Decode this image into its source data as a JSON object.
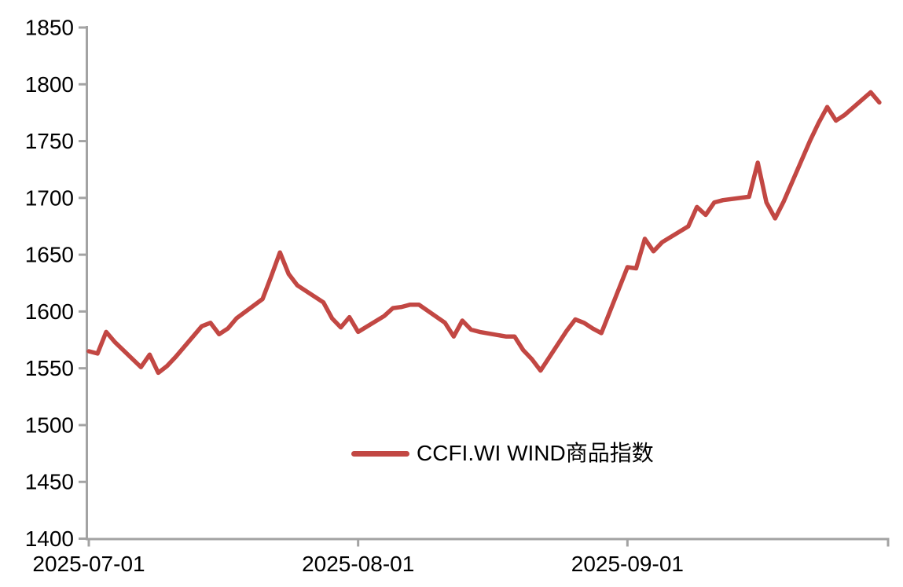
{
  "chart_data": {
    "type": "line",
    "title": "",
    "legend": "CCFI.WI WIND商品指数",
    "legend_position": "lower center",
    "grid": false,
    "x_axis": {
      "tick_labels": [
        "2025-07-01",
        "2025-08-01",
        "2025-09-01"
      ],
      "range_start": "2025-07-01",
      "range_end": "2025-10-01"
    },
    "y_axis": {
      "min": 1400,
      "max": 1850,
      "tick_step": 50,
      "tick_labels": [
        "1400",
        "1450",
        "1500",
        "1550",
        "1600",
        "1650",
        "1700",
        "1750",
        "1800",
        "1850"
      ]
    },
    "series": [
      {
        "name": "CCFI.WI WIND商品指数",
        "color": "#c24743",
        "dates": [
          "2025-07-01",
          "2025-07-02",
          "2025-07-03",
          "2025-07-04",
          "2025-07-07",
          "2025-07-08",
          "2025-07-09",
          "2025-07-10",
          "2025-07-11",
          "2025-07-14",
          "2025-07-15",
          "2025-07-16",
          "2025-07-17",
          "2025-07-18",
          "2025-07-21",
          "2025-07-22",
          "2025-07-23",
          "2025-07-24",
          "2025-07-25",
          "2025-07-28",
          "2025-07-29",
          "2025-07-30",
          "2025-07-31",
          "2025-08-01",
          "2025-08-04",
          "2025-08-05",
          "2025-08-06",
          "2025-08-07",
          "2025-08-08",
          "2025-08-11",
          "2025-08-12",
          "2025-08-13",
          "2025-08-14",
          "2025-08-15",
          "2025-08-18",
          "2025-08-19",
          "2025-08-20",
          "2025-08-21",
          "2025-08-22",
          "2025-08-25",
          "2025-08-26",
          "2025-08-27",
          "2025-08-28",
          "2025-08-29",
          "2025-09-01",
          "2025-09-02",
          "2025-09-03",
          "2025-09-04",
          "2025-09-05",
          "2025-09-08",
          "2025-09-09",
          "2025-09-10",
          "2025-09-11",
          "2025-09-12",
          "2025-09-15",
          "2025-09-16",
          "2025-09-17",
          "2025-09-18",
          "2025-09-19",
          "2025-09-22",
          "2025-09-23",
          "2025-09-24",
          "2025-09-25",
          "2025-09-26",
          "2025-09-29",
          "2025-09-30"
        ],
        "values": [
          1565,
          1563,
          1582,
          1573,
          1551,
          1562,
          1546,
          1552,
          1560,
          1587,
          1590,
          1580,
          1585,
          1594,
          1611,
          1631,
          1652,
          1633,
          1623,
          1608,
          1594,
          1586,
          1595,
          1582,
          1596,
          1603,
          1604,
          1606,
          1606,
          1590,
          1578,
          1592,
          1584,
          1582,
          1578,
          1578,
          1566,
          1558,
          1548,
          1583,
          1593,
          1590,
          1585,
          1581,
          1639,
          1638,
          1664,
          1653,
          1661,
          1675,
          1692,
          1685,
          1696,
          1698,
          1701,
          1731,
          1696,
          1682,
          1697,
          1750,
          1766,
          1780,
          1768,
          1773,
          1793,
          1784
        ]
      }
    ],
    "colors": {
      "line": "#c24743",
      "axis": "#a3a3a3",
      "text": "#000000",
      "background": "#ffffff"
    }
  }
}
